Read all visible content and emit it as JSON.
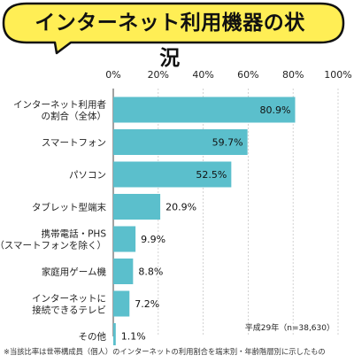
{
  "title": "インターネット利用機器の状況",
  "note": "平成29年（n=38,630）",
  "footnote": "※当該比率は世帯構成員（個人）のインターネットの利用割合を端末別・年齢階層別に示したもの",
  "colors": {
    "bar": "#5bbfcc",
    "title_bg": "#ffee55",
    "title_border": "#111111",
    "grid": "#c8c8c8"
  },
  "chart_data": {
    "type": "bar",
    "orientation": "horizontal",
    "title": "インターネット利用機器の状況",
    "xlim": [
      0,
      100
    ],
    "ticks": [
      "0%",
      "20%",
      "40%",
      "60%",
      "80%",
      "100%"
    ],
    "grid": true,
    "categories": [
      [
        "インターネット利用者",
        "の割合（全体）"
      ],
      [
        "スマートフォン"
      ],
      [
        "パソコン"
      ],
      [
        "タブレット型端末"
      ],
      [
        "携帯電話・PHS",
        "（スマートフォンを除く）"
      ],
      [
        "家庭用ゲーム機"
      ],
      [
        "インターネットに",
        "接続できるテレビ"
      ],
      [
        "その他"
      ]
    ],
    "values": [
      80.9,
      59.7,
      52.5,
      20.9,
      9.9,
      8.8,
      7.2,
      1.1
    ],
    "value_labels": [
      "80.9%",
      "59.7%",
      "52.5%",
      "20.9%",
      "9.9%",
      "8.8%",
      "7.2%",
      "1.1%"
    ]
  }
}
